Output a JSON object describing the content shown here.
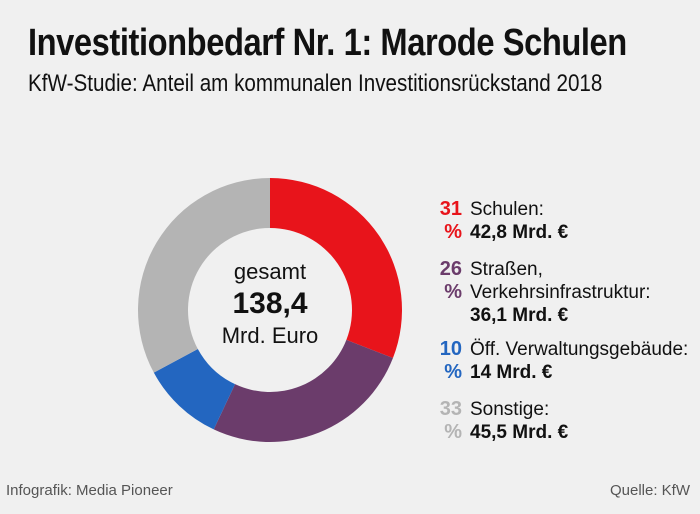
{
  "title": "Investitionbedarf Nr. 1: Marode Schulen",
  "subtitle": "KfW-Studie: Anteil am kommunalen Investitionsrückstand 2018",
  "center": {
    "label_top": "gesamt",
    "value": "138,4",
    "label_bottom": "Mrd. Euro"
  },
  "legend": [
    {
      "pct": "31 %",
      "name_lines": [
        "Schulen:"
      ],
      "amount": "42,8 Mrd. €",
      "color": "#e8141b"
    },
    {
      "pct": "26 %",
      "name_lines": [
        "Straßen,",
        "Verkehrsinfrastruktur:"
      ],
      "amount": "36,1 Mrd. €",
      "color": "#6b3c6b"
    },
    {
      "pct": "10 %",
      "name_lines": [
        "Öff. Verwaltungsgebäude:"
      ],
      "amount": "14 Mrd. €",
      "color": "#2366c0"
    },
    {
      "pct": "33 %",
      "name_lines": [
        "Sonstige:"
      ],
      "amount": "45,5 Mrd. €",
      "color": "#b4b4b4"
    }
  ],
  "footer": {
    "left": "Infografik: Media Pioneer",
    "right": "Quelle: KfW"
  },
  "chart_data": {
    "type": "pie",
    "title": "Investitionbedarf Nr. 1: Marode Schulen",
    "total": 138.4,
    "unit": "Mrd. €",
    "categories": [
      "Schulen",
      "Straßen, Verkehrsinfrastruktur",
      "Öff. Verwaltungsgebäude",
      "Sonstige"
    ],
    "values": [
      42.8,
      36.1,
      14,
      45.5
    ],
    "percents": [
      31,
      26,
      10,
      33
    ],
    "colors": [
      "#e8141b",
      "#6b3c6b",
      "#2366c0",
      "#b4b4b4"
    ]
  }
}
